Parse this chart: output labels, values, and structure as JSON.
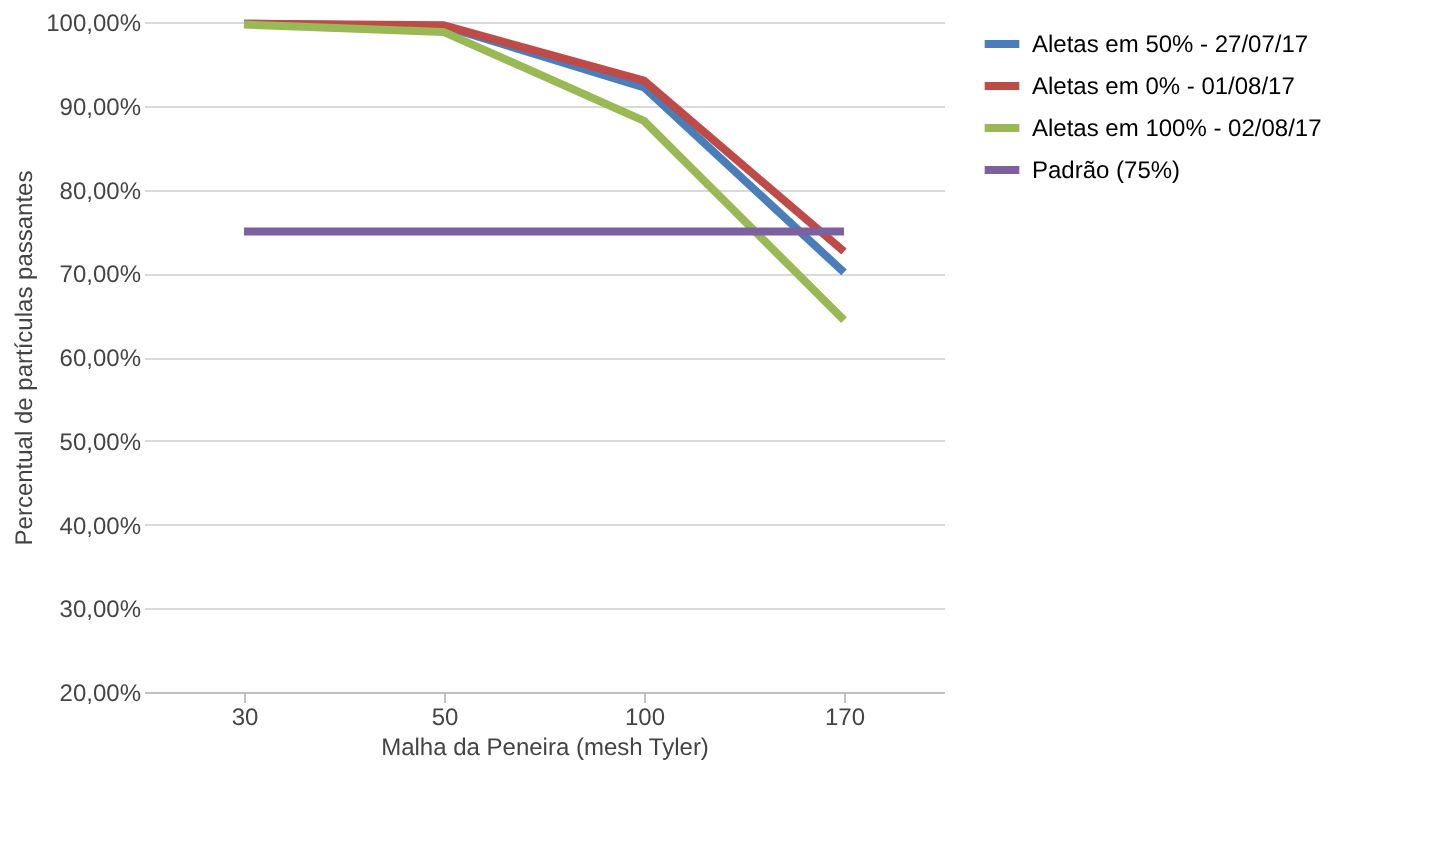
{
  "chart_data": {
    "type": "line",
    "xlabel": "Malha da Peneira (mesh Tyler)",
    "ylabel": "Percentual de partículas passantes",
    "categories": [
      "30",
      "50",
      "100",
      "170"
    ],
    "series": [
      {
        "name": "Aletas em 50% - 27/07/17",
        "color": "#4a7ebb",
        "values": [
          99.8,
          99.5,
          92.2,
          70.1
        ]
      },
      {
        "name": "Aletas em 0% - 01/08/17",
        "color": "#be4b48",
        "values": [
          99.8,
          99.6,
          93.0,
          72.6
        ]
      },
      {
        "name": "Aletas em 100% - 02/08/17",
        "color": "#98b954",
        "values": [
          99.7,
          98.8,
          88.2,
          64.4
        ]
      },
      {
        "name": "Padrão (75%)",
        "color": "#7d60a0",
        "values": [
          75,
          75,
          75,
          75
        ]
      }
    ],
    "ylim": [
      20,
      100
    ],
    "yticks": [
      {
        "value": 20,
        "label": "20,00%"
      },
      {
        "value": 30,
        "label": "30,00%"
      },
      {
        "value": 40,
        "label": "40,00%"
      },
      {
        "value": 50,
        "label": "50,00%"
      },
      {
        "value": 60,
        "label": "60,00%"
      },
      {
        "value": 70,
        "label": "70,00%"
      },
      {
        "value": 80,
        "label": "80,00%"
      },
      {
        "value": 90,
        "label": "90,00%"
      },
      {
        "value": 100,
        "label": "100,00%"
      }
    ],
    "grid": "y",
    "legend": "right",
    "marker": "none",
    "line_style": "solid"
  }
}
